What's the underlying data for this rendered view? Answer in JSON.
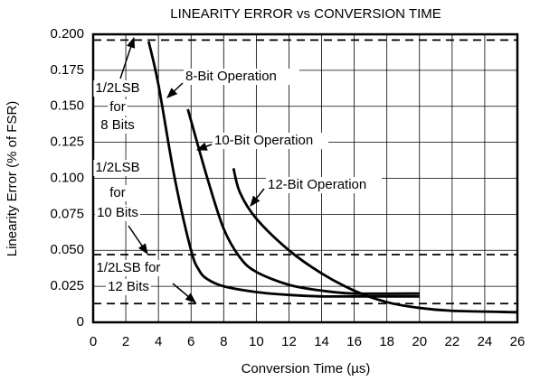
{
  "chart_data": {
    "type": "line",
    "title": "LINEARITY ERROR vs CONVERSION TIME",
    "x_label": "Conversion Time (µs)",
    "y_label": "Linearity Error (% of FSR)",
    "xlim": [
      0,
      26
    ],
    "xticks": [
      0,
      2,
      4,
      6,
      8,
      10,
      12,
      14,
      16,
      18,
      20,
      22,
      24,
      26
    ],
    "ylim": [
      0,
      0.2
    ],
    "yticks": [
      0,
      0.025,
      {
        "value": 0.05,
        "label": "0.050"
      },
      0.075,
      {
        "value": 0.1,
        "label": "0.100"
      },
      0.125,
      {
        "value": 0.15,
        "label": "0.150"
      },
      0.175,
      {
        "value": 0.2,
        "label": "0.200"
      }
    ],
    "grid": true,
    "series": [
      {
        "name": "8-Bit Operation",
        "color": "#000000",
        "x": [
          3.4,
          4,
          5,
          6,
          6.5,
          7,
          8,
          10,
          12,
          14,
          16,
          20
        ],
        "values": [
          0.195,
          0.165,
          0.1,
          0.05,
          0.036,
          0.03,
          0.025,
          0.021,
          0.019,
          0.018,
          0.018,
          0.018
        ]
      },
      {
        "name": "10-Bit Operation",
        "color": "#000000",
        "x": [
          5.8,
          6,
          7,
          8,
          9,
          10,
          12,
          14,
          16,
          20
        ],
        "values": [
          0.148,
          0.14,
          0.1,
          0.065,
          0.045,
          0.035,
          0.026,
          0.022,
          0.02,
          0.02
        ]
      },
      {
        "name": "12-Bit Operation",
        "color": "#000000",
        "x": [
          8.6,
          9,
          10,
          12,
          14,
          16,
          18,
          20,
          22,
          26
        ],
        "values": [
          0.107,
          0.09,
          0.072,
          0.05,
          0.034,
          0.022,
          0.014,
          0.01,
          0.008,
          0.007
        ]
      }
    ],
    "reference_lines": [
      {
        "value": 0.196,
        "label": [
          "1/2LSB",
          "for",
          "8 Bits"
        ]
      },
      {
        "value": 0.047,
        "label": [
          "1/2LSB",
          "for",
          "10 Bits"
        ]
      },
      {
        "value": 0.013,
        "label": [
          "1/2LSB for",
          "12 Bits"
        ]
      }
    ]
  }
}
